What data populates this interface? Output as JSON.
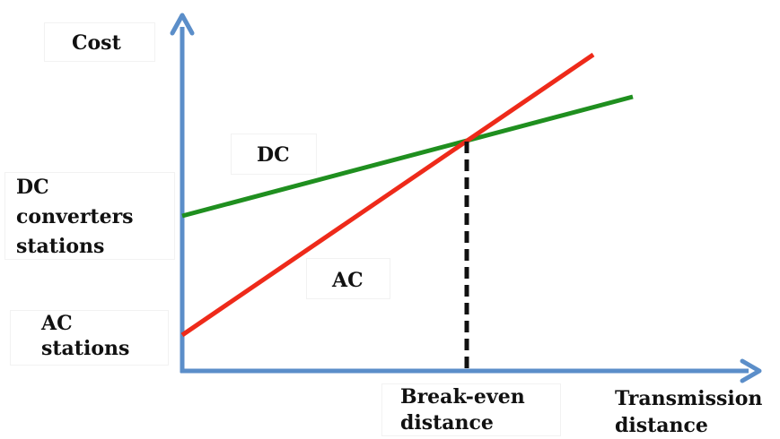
{
  "labels": {
    "y_axis": "Cost",
    "x_axis_line1": "Transmission",
    "x_axis_line2": "distance",
    "dc_line": "DC",
    "ac_line": "AC",
    "dc_intercept_line1": "DC",
    "dc_intercept_line2": "converters",
    "dc_intercept_line3": "stations",
    "ac_intercept_line1": "AC",
    "ac_intercept_line2": "stations",
    "break_even_line1": "Break-even",
    "break_even_line2": "distance"
  },
  "colors": {
    "axis": "#5b8ec9",
    "ac": "#ee2a1a",
    "dc": "#1f8f1f",
    "break_even": "#111111"
  }
}
